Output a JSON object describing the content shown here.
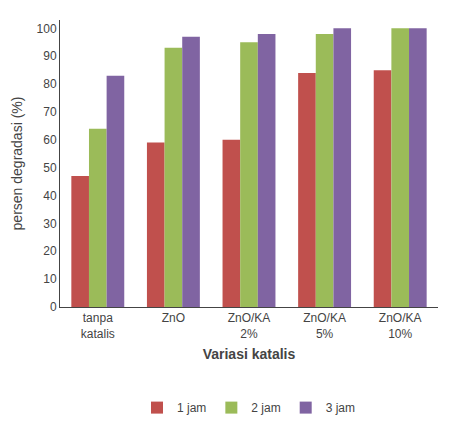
{
  "chart_data": {
    "type": "bar",
    "categories": [
      "tanpa\nkatalis",
      "ZnO",
      "ZnO/KA\n2%",
      "ZnO/KA\n5%",
      "ZnO/KA\n10%"
    ],
    "series": [
      {
        "name": "1 jam",
        "color": "#C0504D",
        "values": [
          47,
          59,
          60,
          84,
          85
        ]
      },
      {
        "name": "2 jam",
        "color": "#9BBB59",
        "values": [
          64,
          93,
          95,
          98,
          100
        ]
      },
      {
        "name": "3 jam",
        "color": "#8064A2",
        "values": [
          83,
          97,
          98,
          100,
          100
        ]
      }
    ],
    "xlabel": "Variasi katalis",
    "ylabel": "persen degradasi (%)",
    "ylim": [
      0,
      103
    ],
    "yticks": [
      0,
      10,
      20,
      30,
      40,
      50,
      60,
      70,
      80,
      90,
      100
    ],
    "grid": false,
    "legend": "bottom"
  }
}
